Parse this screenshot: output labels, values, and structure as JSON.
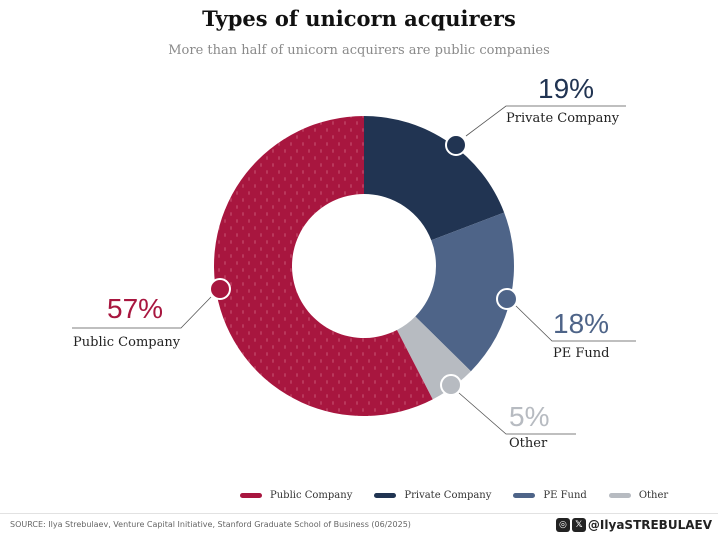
{
  "title": "Types of unicorn acquirers",
  "subtitle": "More than half of unicorn acquirers are public companies",
  "chart_data": {
    "type": "pie",
    "donut": true,
    "title": "Types of unicorn acquirers",
    "subtitle": "More than half of unicorn acquirers are public companies",
    "categories": [
      "Private Company",
      "PE Fund",
      "Other",
      "Public Company"
    ],
    "values": [
      19,
      18,
      5,
      57
    ],
    "labels": [
      "19%",
      "18%",
      "5%",
      "57%"
    ],
    "colors": [
      "#213452",
      "#4e6488",
      "#b7bbc1",
      "#a8163f"
    ],
    "legend_position": "bottom",
    "legend": [
      "Public Company",
      "Private Company",
      "PE Fund",
      "Other"
    ]
  },
  "legend": [
    {
      "label": "Public Company",
      "color": "#a8163f"
    },
    {
      "label": "Private Company",
      "color": "#213452"
    },
    {
      "label": "PE Fund",
      "color": "#4e6488"
    },
    {
      "label": "Other",
      "color": "#b7bbc1"
    }
  ],
  "footer": {
    "source": "SOURCE: Ilya Strebulaev, Venture Capital Initiative, Stanford Graduate School of Business (06/2025)",
    "handle": "@IlyaSTREBULAEV",
    "icons": [
      "instagram-icon",
      "x-icon"
    ]
  }
}
